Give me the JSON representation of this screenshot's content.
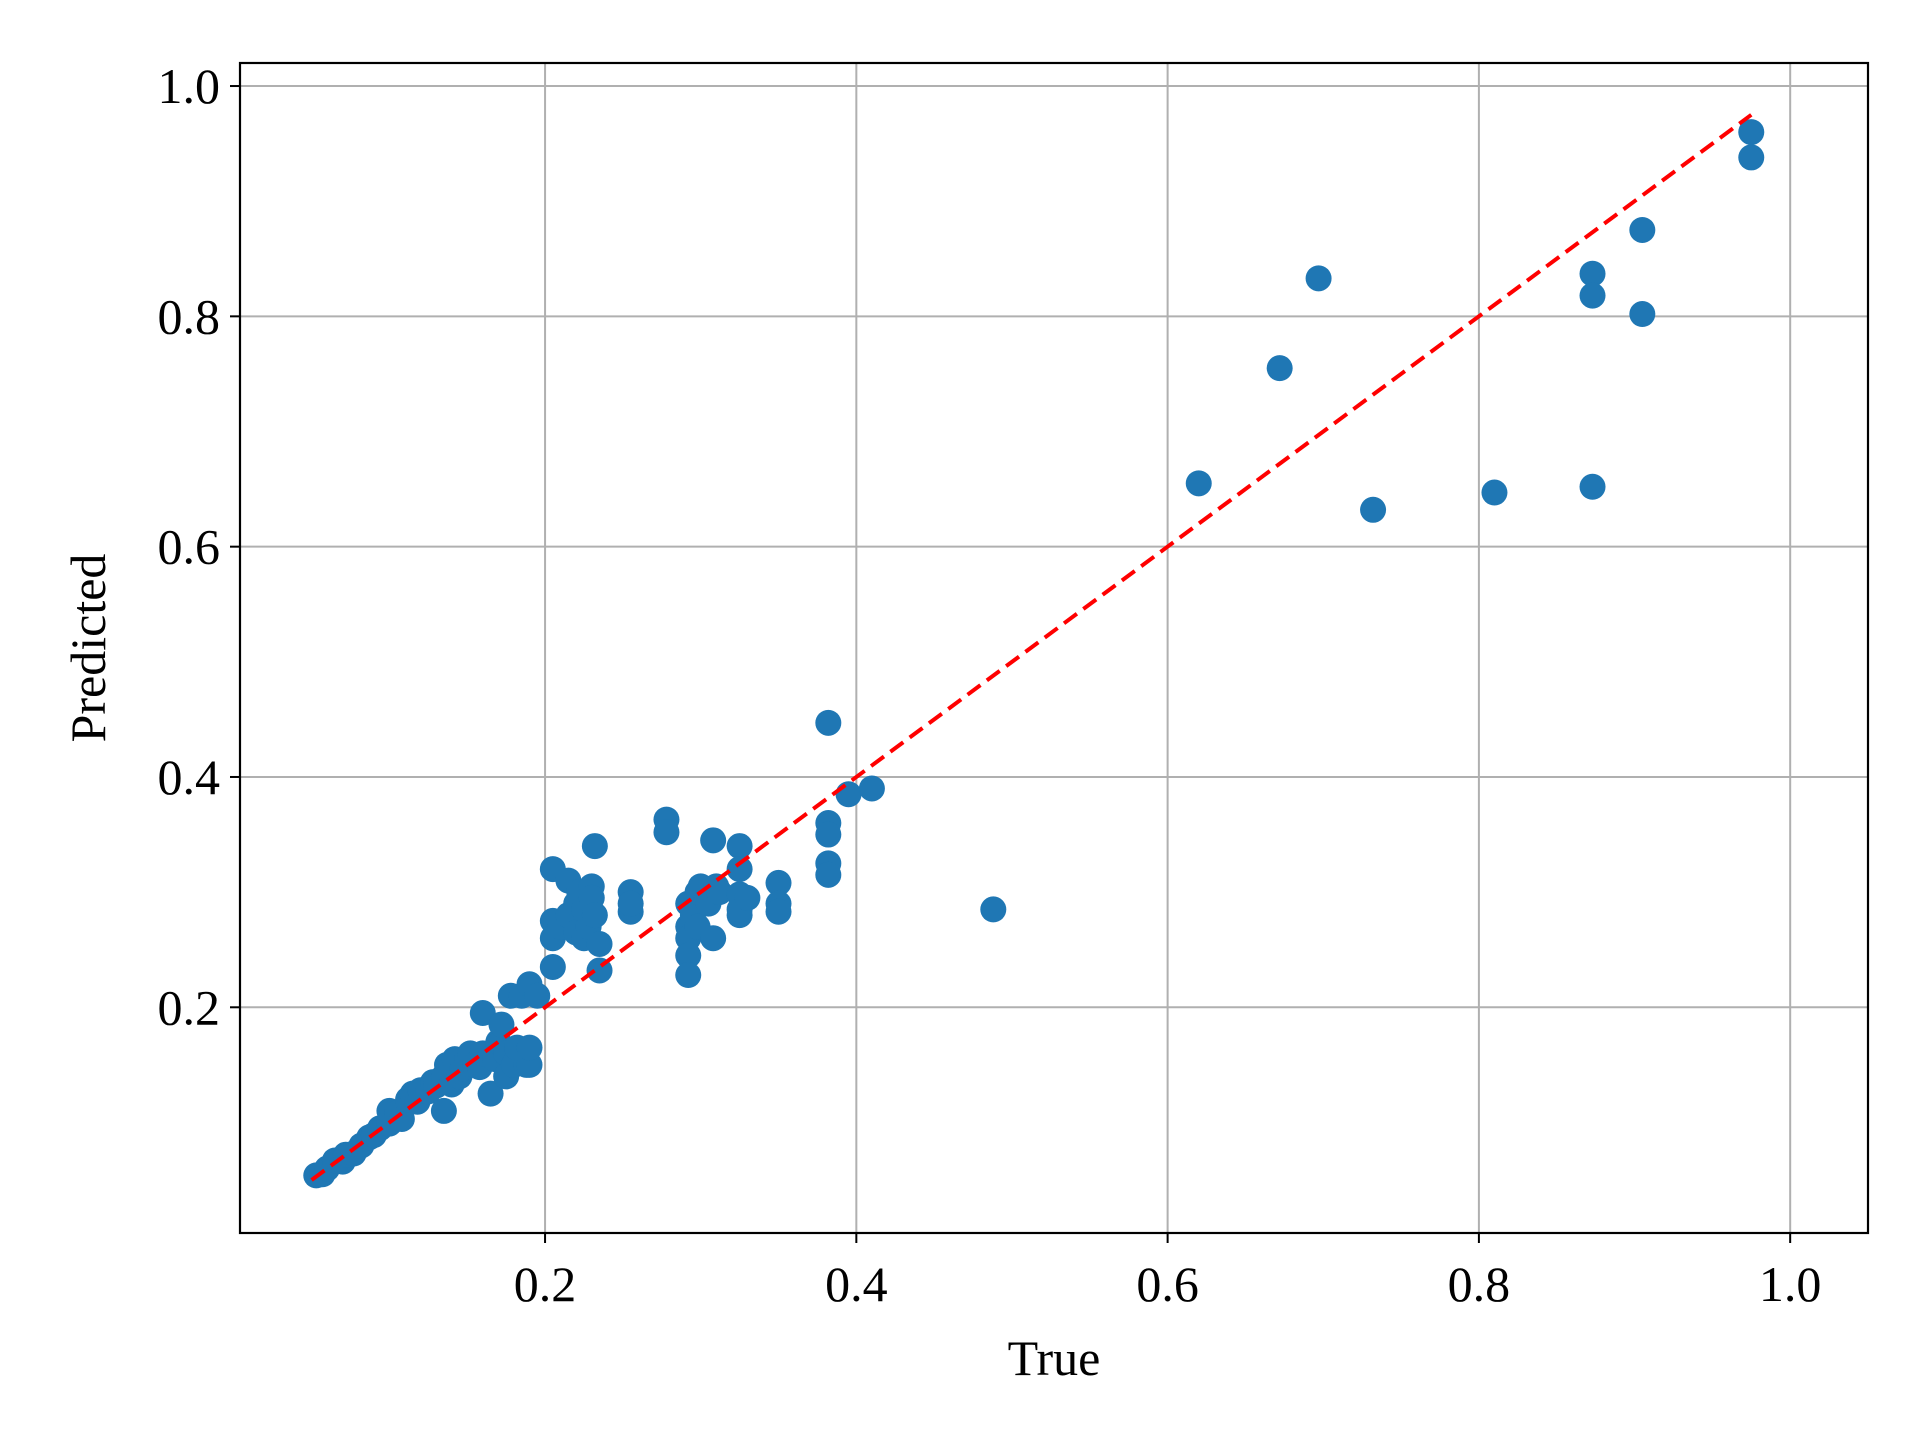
{
  "chart_data": {
    "type": "scatter",
    "title": "",
    "xlabel": "True",
    "ylabel": "Predicted",
    "xlim": [
      0.004,
      1.05
    ],
    "ylim": [
      0.004,
      1.02
    ],
    "xticks": [
      0.2,
      0.4,
      0.6,
      0.8,
      1.0
    ],
    "xtick_labels": [
      "0.2",
      "0.4",
      "0.6",
      "0.8",
      "1.0"
    ],
    "yticks": [
      0.2,
      0.4,
      0.6,
      0.8,
      1.0
    ],
    "ytick_labels": [
      "0.2",
      "0.4",
      "0.6",
      "0.8",
      "1.0"
    ],
    "grid": true,
    "legend": "none",
    "colors": {
      "points": "#1f77b4",
      "reference_line": "#ff0000",
      "grid": "#b0b0b0"
    },
    "reference_line": {
      "style": "dashed",
      "from": [
        0.05,
        0.05
      ],
      "to": [
        0.975,
        0.975
      ]
    },
    "series": [
      {
        "x": [
          0.053,
          0.057,
          0.06,
          0.065,
          0.07,
          0.072,
          0.077,
          0.082,
          0.087,
          0.09,
          0.094,
          0.1,
          0.1,
          0.105,
          0.108,
          0.112,
          0.115,
          0.118,
          0.12,
          0.125,
          0.128,
          0.13,
          0.135,
          0.135,
          0.137,
          0.14,
          0.142,
          0.145,
          0.147,
          0.15,
          0.152,
          0.155,
          0.158,
          0.16,
          0.16,
          0.165,
          0.165,
          0.168,
          0.17,
          0.172,
          0.175,
          0.175,
          0.178,
          0.18,
          0.182,
          0.185,
          0.188,
          0.19,
          0.19,
          0.19,
          0.195,
          0.205,
          0.205,
          0.205,
          0.205,
          0.21,
          0.215,
          0.215,
          0.22,
          0.22,
          0.222,
          0.225,
          0.225,
          0.228,
          0.23,
          0.23,
          0.232,
          0.232,
          0.235,
          0.235,
          0.255,
          0.255,
          0.255,
          0.278,
          0.278,
          0.292,
          0.292,
          0.292,
          0.292,
          0.292,
          0.295,
          0.298,
          0.298,
          0.3,
          0.305,
          0.308,
          0.308,
          0.31,
          0.312,
          0.325,
          0.325,
          0.325,
          0.325,
          0.325,
          0.33,
          0.35,
          0.35,
          0.35,
          0.382,
          0.382,
          0.382,
          0.382,
          0.382,
          0.395,
          0.41,
          0.488,
          0.62,
          0.672,
          0.697,
          0.732,
          0.81,
          0.873,
          0.873,
          0.873,
          0.905,
          0.905,
          0.975,
          0.975
        ],
        "y": [
          0.054,
          0.055,
          0.06,
          0.067,
          0.066,
          0.072,
          0.073,
          0.08,
          0.087,
          0.089,
          0.095,
          0.099,
          0.11,
          0.108,
          0.103,
          0.12,
          0.125,
          0.118,
          0.128,
          0.127,
          0.135,
          0.132,
          0.14,
          0.11,
          0.15,
          0.133,
          0.155,
          0.14,
          0.147,
          0.155,
          0.16,
          0.15,
          0.148,
          0.195,
          0.16,
          0.158,
          0.125,
          0.155,
          0.17,
          0.185,
          0.16,
          0.14,
          0.21,
          0.15,
          0.165,
          0.21,
          0.15,
          0.22,
          0.15,
          0.165,
          0.21,
          0.32,
          0.275,
          0.26,
          0.235,
          0.27,
          0.31,
          0.28,
          0.29,
          0.265,
          0.3,
          0.285,
          0.26,
          0.27,
          0.305,
          0.295,
          0.28,
          0.34,
          0.232,
          0.255,
          0.3,
          0.283,
          0.29,
          0.363,
          0.352,
          0.29,
          0.27,
          0.26,
          0.245,
          0.228,
          0.28,
          0.3,
          0.27,
          0.305,
          0.29,
          0.345,
          0.26,
          0.305,
          0.3,
          0.34,
          0.32,
          0.298,
          0.28,
          0.285,
          0.295,
          0.308,
          0.29,
          0.283,
          0.447,
          0.36,
          0.35,
          0.325,
          0.315,
          0.385,
          0.39,
          0.285,
          0.655,
          0.755,
          0.833,
          0.632,
          0.647,
          0.837,
          0.818,
          0.652,
          0.875,
          0.802,
          0.96,
          0.938
        ]
      }
    ]
  }
}
